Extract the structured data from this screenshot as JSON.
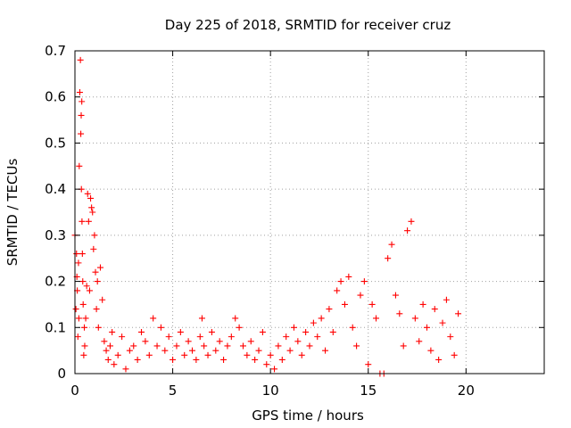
{
  "chart_data": {
    "type": "scatter",
    "title": "Day 225 of 2018, SRMTID for receiver cruz",
    "xlabel": "GPS time / hours",
    "ylabel": "SRMTID / TECUs",
    "xlim": [
      0,
      24
    ],
    "ylim": [
      0,
      0.7
    ],
    "x_ticks": [
      0,
      5,
      10,
      15,
      20
    ],
    "x_tick_labels": [
      "0",
      "5",
      "10",
      "15",
      "20"
    ],
    "y_ticks": [
      0,
      0.1,
      0.2,
      0.3,
      0.4,
      0.5,
      0.6,
      0.7
    ],
    "y_tick_labels": [
      "0",
      "0.1",
      "0.2",
      "0.3",
      "0.4",
      "0.5",
      "0.6",
      "0.7"
    ],
    "grid": true,
    "marker": "plus",
    "series": [
      {
        "name": "SRMTID",
        "color": "#ff0000",
        "x": [
          0.0,
          0.05,
          0.08,
          0.1,
          0.12,
          0.15,
          0.18,
          0.2,
          0.22,
          0.25,
          0.28,
          0.3,
          0.32,
          0.33,
          0.35,
          0.36,
          0.38,
          0.4,
          0.42,
          0.45,
          0.48,
          0.5,
          0.55,
          0.6,
          0.65,
          0.7,
          0.75,
          0.8,
          0.85,
          0.9,
          0.95,
          1.0,
          1.05,
          1.1,
          1.15,
          1.2,
          1.3,
          1.4,
          1.5,
          1.6,
          1.7,
          1.8,
          1.9,
          2.0,
          2.2,
          2.4,
          2.6,
          2.8,
          3.0,
          3.2,
          3.4,
          3.6,
          3.8,
          4.0,
          4.2,
          4.4,
          4.6,
          4.8,
          5.0,
          5.2,
          5.4,
          5.6,
          5.8,
          6.0,
          6.2,
          6.4,
          6.5,
          6.6,
          6.8,
          7.0,
          7.2,
          7.4,
          7.6,
          7.8,
          8.0,
          8.2,
          8.4,
          8.6,
          8.8,
          9.0,
          9.2,
          9.4,
          9.6,
          9.8,
          10.0,
          10.2,
          10.4,
          10.6,
          10.8,
          11.0,
          11.2,
          11.4,
          11.6,
          11.8,
          12.0,
          12.2,
          12.4,
          12.6,
          12.8,
          13.0,
          13.2,
          13.4,
          13.6,
          13.8,
          14.0,
          14.2,
          14.4,
          14.6,
          14.8,
          15.0,
          15.2,
          15.4,
          15.6,
          15.8,
          16.0,
          16.2,
          16.4,
          16.6,
          16.8,
          17.0,
          17.2,
          17.4,
          17.6,
          17.8,
          18.0,
          18.2,
          18.4,
          18.6,
          18.8,
          19.0,
          19.2,
          19.4,
          19.6
        ],
        "y": [
          0.3,
          0.14,
          0.26,
          0.21,
          0.18,
          0.08,
          0.24,
          0.12,
          0.45,
          0.61,
          0.68,
          0.52,
          0.56,
          0.4,
          0.59,
          0.33,
          0.26,
          0.2,
          0.15,
          0.04,
          0.1,
          0.06,
          0.12,
          0.19,
          0.39,
          0.33,
          0.18,
          0.38,
          0.36,
          0.35,
          0.27,
          0.3,
          0.22,
          0.14,
          0.2,
          0.1,
          0.23,
          0.16,
          0.07,
          0.05,
          0.03,
          0.06,
          0.09,
          0.02,
          0.04,
          0.08,
          0.01,
          0.05,
          0.06,
          0.03,
          0.09,
          0.07,
          0.04,
          0.12,
          0.06,
          0.1,
          0.05,
          0.08,
          0.03,
          0.06,
          0.09,
          0.04,
          0.07,
          0.05,
          0.03,
          0.08,
          0.12,
          0.06,
          0.04,
          0.09,
          0.05,
          0.07,
          0.03,
          0.06,
          0.08,
          0.12,
          0.1,
          0.06,
          0.04,
          0.07,
          0.03,
          0.05,
          0.09,
          0.02,
          0.04,
          0.01,
          0.06,
          0.03,
          0.08,
          0.05,
          0.1,
          0.07,
          0.04,
          0.09,
          0.06,
          0.11,
          0.08,
          0.12,
          0.05,
          0.14,
          0.09,
          0.18,
          0.2,
          0.15,
          0.21,
          0.1,
          0.06,
          0.17,
          0.2,
          0.02,
          0.15,
          0.12,
          0.0,
          0.0,
          0.25,
          0.28,
          0.17,
          0.13,
          0.06,
          0.31,
          0.33,
          0.12,
          0.07,
          0.15,
          0.1,
          0.05,
          0.14,
          0.03,
          0.11,
          0.16,
          0.08,
          0.04,
          0.13
        ]
      }
    ]
  }
}
